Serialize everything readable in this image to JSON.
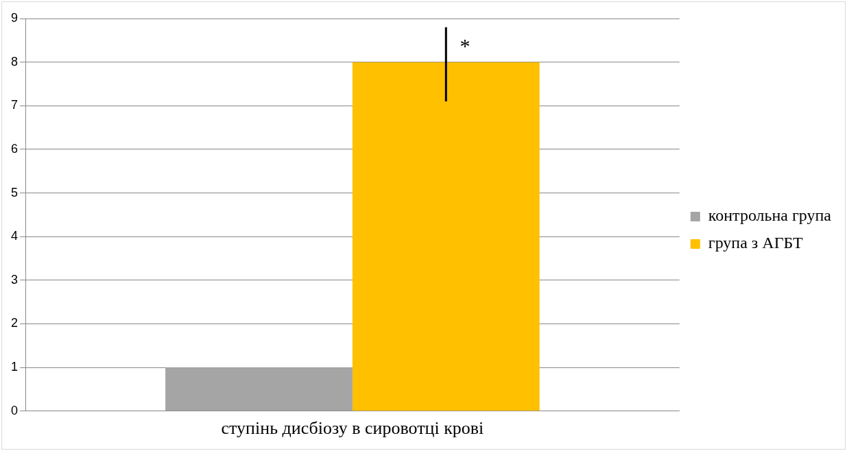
{
  "chart_data": {
    "type": "bar",
    "categories": [
      "ступінь дисбіозу в сировотці крові"
    ],
    "series": [
      {
        "name": "контрольна група",
        "color": "#a5a5a5",
        "values": [
          1
        ],
        "errors": [
          null
        ]
      },
      {
        "name": "група з АГБТ",
        "color": "#ffc000",
        "values": [
          8
        ],
        "errors": [
          [
            7.1,
            8.8
          ]
        ]
      }
    ],
    "ylim": [
      0,
      9
    ],
    "yticks": [
      0,
      1,
      2,
      3,
      4,
      5,
      6,
      7,
      8,
      9
    ],
    "grid": "y",
    "legend": "right",
    "annotations": [
      "*"
    ]
  }
}
